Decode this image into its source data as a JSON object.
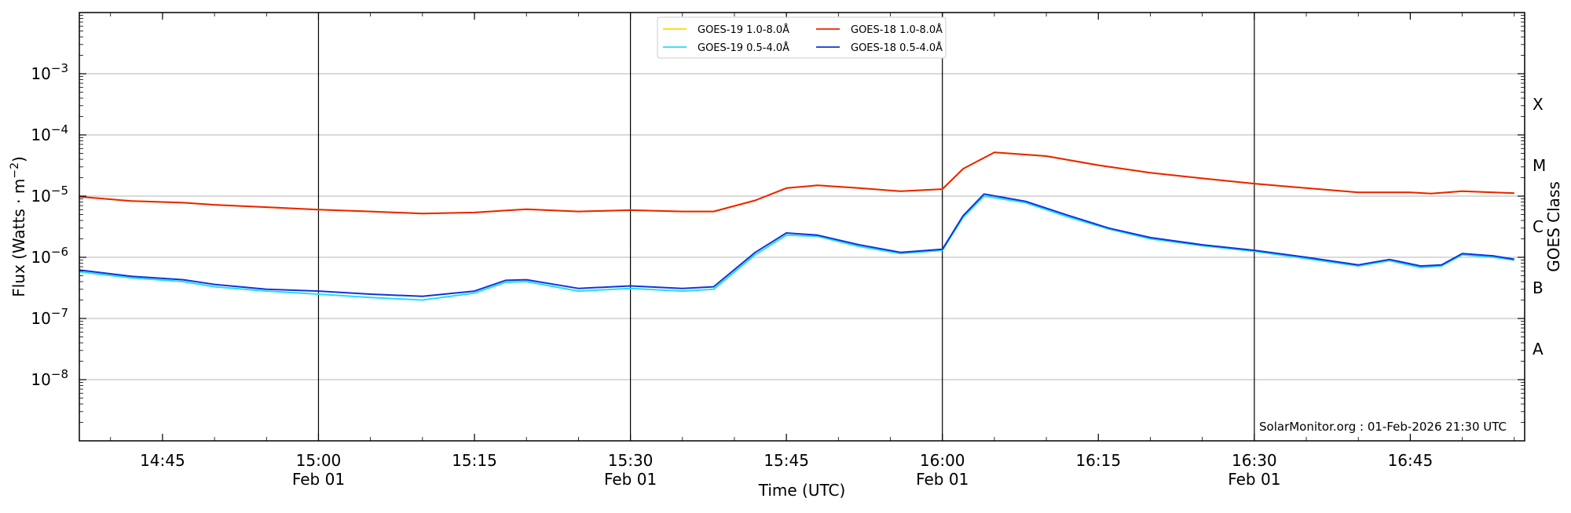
{
  "chart_data": {
    "type": "line",
    "ylabel": "Flux (Watts · m",
    "ylabel_sup": "−2",
    "ylabel_end": ")",
    "xlabel": "Time (UTC)",
    "right_label": "GOES Class",
    "y_scale": "log",
    "ylim": [
      1e-09,
      0.01
    ],
    "xlim": [
      "14:37",
      "16:56"
    ],
    "y_ticks": [
      {
        "exp": -8,
        "label": "10",
        "sup": "−8"
      },
      {
        "exp": -7,
        "label": "10",
        "sup": "−7"
      },
      {
        "exp": -6,
        "label": "10",
        "sup": "−6"
      },
      {
        "exp": -5,
        "label": "10",
        "sup": "−5"
      },
      {
        "exp": -4,
        "label": "10",
        "sup": "−4"
      },
      {
        "exp": -3,
        "label": "10",
        "sup": "−3"
      }
    ],
    "x_ticks": [
      {
        "time": "14:45",
        "label": "14:45",
        "sub": ""
      },
      {
        "time": "15:00",
        "label": "15:00",
        "sub": "Feb 01"
      },
      {
        "time": "15:15",
        "label": "15:15",
        "sub": ""
      },
      {
        "time": "15:30",
        "label": "15:30",
        "sub": "Feb 01"
      },
      {
        "time": "15:45",
        "label": "15:45",
        "sub": ""
      },
      {
        "time": "16:00",
        "label": "16:00",
        "sub": "Feb 01"
      },
      {
        "time": "16:15",
        "label": "16:15",
        "sub": ""
      },
      {
        "time": "16:30",
        "label": "16:30",
        "sub": "Feb 01"
      },
      {
        "time": "16:45",
        "label": "16:45",
        "sub": ""
      }
    ],
    "vertical_lines": [
      "15:00",
      "15:30",
      "16:00",
      "16:30"
    ],
    "grid": "horizontal",
    "goes_classes": [
      {
        "label": "A",
        "at": 3.16e-08
      },
      {
        "label": "B",
        "at": 3.16e-07
      },
      {
        "label": "C",
        "at": 3.16e-06
      },
      {
        "label": "M",
        "at": 3.16e-05
      },
      {
        "label": "X",
        "at": 0.000316
      }
    ],
    "legend_position": "top-center",
    "credit": "SolarMonitor.org : 01-Feb-2026 21:30 UTC",
    "series": [
      {
        "name": "GOES-19 1.0-8.0Å",
        "color": "#ffd700",
        "x": [
          "14:37",
          "14:42",
          "14:47",
          "14:50",
          "14:55",
          "15:00",
          "15:05",
          "15:10",
          "15:15",
          "15:20",
          "15:25",
          "15:30",
          "15:35",
          "15:38",
          "15:42",
          "15:45",
          "15:48",
          "15:52",
          "15:56",
          "16:00",
          "16:02",
          "16:05",
          "16:10",
          "16:15",
          "16:20",
          "16:25",
          "16:30",
          "16:35",
          "16:40",
          "16:45",
          "16:47",
          "16:50",
          "16:53",
          "16:55"
        ],
        "y": [
          9.8e-06,
          8.3e-06,
          7.8e-06,
          7.2e-06,
          6.6e-06,
          6e-06,
          5.6e-06,
          5.2e-06,
          5.4e-06,
          6.1e-06,
          5.6e-06,
          5.9e-06,
          5.6e-06,
          5.6e-06,
          8.5e-06,
          1.35e-05,
          1.5e-05,
          1.35e-05,
          1.2e-05,
          1.3e-05,
          2.8e-05,
          5.2e-05,
          4.5e-05,
          3.2e-05,
          2.4e-05,
          1.95e-05,
          1.6e-05,
          1.35e-05,
          1.15e-05,
          1.15e-05,
          1.1e-05,
          1.2e-05,
          1.15e-05,
          1.12e-05
        ]
      },
      {
        "name": "GOES-18 1.0-8.0Å",
        "color": "#ee2200",
        "x": [
          "14:37",
          "14:42",
          "14:47",
          "14:50",
          "14:55",
          "15:00",
          "15:05",
          "15:10",
          "15:15",
          "15:20",
          "15:25",
          "15:30",
          "15:35",
          "15:38",
          "15:42",
          "15:45",
          "15:48",
          "15:52",
          "15:56",
          "16:00",
          "16:02",
          "16:05",
          "16:10",
          "16:15",
          "16:20",
          "16:25",
          "16:30",
          "16:35",
          "16:40",
          "16:45",
          "16:47",
          "16:50",
          "16:53",
          "16:55"
        ],
        "y": [
          9.8e-06,
          8.3e-06,
          7.8e-06,
          7.2e-06,
          6.6e-06,
          6e-06,
          5.6e-06,
          5.2e-06,
          5.4e-06,
          6.1e-06,
          5.6e-06,
          5.9e-06,
          5.6e-06,
          5.6e-06,
          8.5e-06,
          1.35e-05,
          1.5e-05,
          1.35e-05,
          1.2e-05,
          1.3e-05,
          2.8e-05,
          5.2e-05,
          4.5e-05,
          3.2e-05,
          2.4e-05,
          1.95e-05,
          1.6e-05,
          1.35e-05,
          1.15e-05,
          1.15e-05,
          1.1e-05,
          1.2e-05,
          1.15e-05,
          1.12e-05
        ]
      },
      {
        "name": "GOES-19 0.5-4.0Å",
        "color": "#22ddff",
        "x": [
          "14:37",
          "14:42",
          "14:47",
          "14:50",
          "14:55",
          "15:00",
          "15:05",
          "15:10",
          "15:15",
          "15:18",
          "15:20",
          "15:25",
          "15:30",
          "15:35",
          "15:38",
          "15:42",
          "15:45",
          "15:48",
          "15:52",
          "15:56",
          "16:00",
          "16:02",
          "16:04",
          "16:08",
          "16:12",
          "16:16",
          "16:20",
          "16:25",
          "16:30",
          "16:35",
          "16:40",
          "16:43",
          "16:46",
          "16:48",
          "16:50",
          "16:53",
          "16:55"
        ],
        "y": [
          5.8e-07,
          4.6e-07,
          4e-07,
          3.3e-07,
          2.8e-07,
          2.5e-07,
          2.2e-07,
          2e-07,
          2.6e-07,
          3.9e-07,
          4e-07,
          2.8e-07,
          3.1e-07,
          2.8e-07,
          3e-07,
          1.1e-06,
          2.3e-06,
          2.2e-06,
          1.5e-06,
          1.15e-06,
          1.3e-06,
          4.5e-06,
          1e-05,
          7.8e-06,
          4.6e-06,
          2.9e-06,
          2e-06,
          1.55e-06,
          1.25e-06,
          9.5e-07,
          7.2e-07,
          8.8e-07,
          6.8e-07,
          7.2e-07,
          1.1e-06,
          1e-06,
          9e-07
        ]
      },
      {
        "name": "GOES-18 0.5-4.0Å",
        "color": "#1133dd",
        "x": [
          "14:37",
          "14:42",
          "14:47",
          "14:50",
          "14:55",
          "15:00",
          "15:05",
          "15:10",
          "15:15",
          "15:18",
          "15:20",
          "15:25",
          "15:30",
          "15:35",
          "15:38",
          "15:42",
          "15:45",
          "15:48",
          "15:52",
          "15:56",
          "16:00",
          "16:02",
          "16:04",
          "16:08",
          "16:12",
          "16:16",
          "16:20",
          "16:25",
          "16:30",
          "16:35",
          "16:40",
          "16:43",
          "16:46",
          "16:48",
          "16:50",
          "16:53",
          "16:55"
        ],
        "y": [
          6.2e-07,
          4.9e-07,
          4.3e-07,
          3.6e-07,
          3e-07,
          2.8e-07,
          2.5e-07,
          2.3e-07,
          2.8e-07,
          4.2e-07,
          4.3e-07,
          3.1e-07,
          3.4e-07,
          3.1e-07,
          3.3e-07,
          1.2e-06,
          2.5e-06,
          2.3e-06,
          1.6e-06,
          1.2e-06,
          1.35e-06,
          4.8e-06,
          1.08e-05,
          8.2e-06,
          4.9e-06,
          3e-06,
          2.1e-06,
          1.6e-06,
          1.3e-06,
          1e-06,
          7.5e-07,
          9.2e-07,
          7.2e-07,
          7.5e-07,
          1.15e-06,
          1.05e-06,
          9.3e-07
        ]
      }
    ],
    "legend_order": [
      0,
      2,
      1,
      3
    ]
  }
}
